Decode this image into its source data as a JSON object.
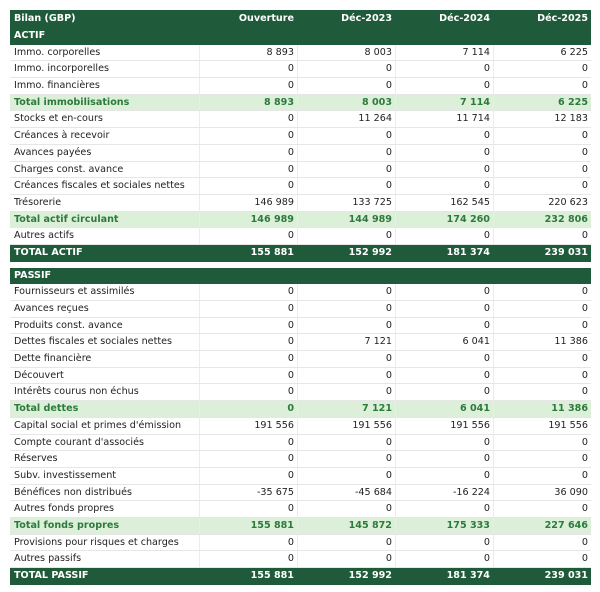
{
  "header": [
    "Bilan (GBP)",
    "Ouverture",
    "Déc-2023",
    "Déc-2024",
    "Déc-2025"
  ],
  "sections": [
    {
      "title": "ACTIF",
      "rows": [
        {
          "label": "Immo. corporelles",
          "values": [
            "8 893",
            "8 003",
            "7 114",
            "6 225"
          ]
        },
        {
          "label": "Immo. incorporelles",
          "values": [
            "0",
            "0",
            "0",
            "0"
          ]
        },
        {
          "label": "Immo. financières",
          "values": [
            "0",
            "0",
            "0",
            "0"
          ]
        },
        {
          "label": "Total immobilisations",
          "values": [
            "8 893",
            "8 003",
            "7 114",
            "6 225"
          ],
          "style": "subtotal"
        },
        {
          "label": "Stocks et en-cours",
          "values": [
            "0",
            "11 264",
            "11 714",
            "12 183"
          ]
        },
        {
          "label": "Créances à recevoir",
          "values": [
            "0",
            "0",
            "0",
            "0"
          ]
        },
        {
          "label": "Avances payées",
          "values": [
            "0",
            "0",
            "0",
            "0"
          ]
        },
        {
          "label": "Charges const. avance",
          "values": [
            "0",
            "0",
            "0",
            "0"
          ]
        },
        {
          "label": "Créances fiscales et sociales nettes",
          "values": [
            "0",
            "0",
            "0",
            "0"
          ]
        },
        {
          "label": "Trésorerie",
          "values": [
            "146 989",
            "133 725",
            "162 545",
            "220 623"
          ]
        },
        {
          "label": "Total actif circulant",
          "values": [
            "146 989",
            "144 989",
            "174 260",
            "232 806"
          ],
          "style": "subtotal"
        },
        {
          "label": "Autres actifs",
          "values": [
            "0",
            "0",
            "0",
            "0"
          ]
        },
        {
          "label": "TOTAL ACTIF",
          "values": [
            "155 881",
            "152 992",
            "181 374",
            "239 031"
          ],
          "style": "total"
        }
      ]
    },
    {
      "title": "PASSIF",
      "rows": [
        {
          "label": "Fournisseurs et assimilés",
          "values": [
            "0",
            "0",
            "0",
            "0"
          ]
        },
        {
          "label": "Avances reçues",
          "values": [
            "0",
            "0",
            "0",
            "0"
          ]
        },
        {
          "label": "Produits const. avance",
          "values": [
            "0",
            "0",
            "0",
            "0"
          ]
        },
        {
          "label": "Dettes fiscales et sociales nettes",
          "values": [
            "0",
            "7 121",
            "6 041",
            "11 386"
          ]
        },
        {
          "label": "Dette financière",
          "values": [
            "0",
            "0",
            "0",
            "0"
          ]
        },
        {
          "label": "Découvert",
          "values": [
            "0",
            "0",
            "0",
            "0"
          ]
        },
        {
          "label": "Intérêts courus non échus",
          "values": [
            "0",
            "0",
            "0",
            "0"
          ]
        },
        {
          "label": "Total dettes",
          "values": [
            "0",
            "7 121",
            "6 041",
            "11 386"
          ],
          "style": "subtotal"
        },
        {
          "label": "Capital social et primes d'émission",
          "values": [
            "191 556",
            "191 556",
            "191 556",
            "191 556"
          ]
        },
        {
          "label": "Compte courant d'associés",
          "values": [
            "0",
            "0",
            "0",
            "0"
          ]
        },
        {
          "label": "Réserves",
          "values": [
            "0",
            "0",
            "0",
            "0"
          ]
        },
        {
          "label": "Subv. investissement",
          "values": [
            "0",
            "0",
            "0",
            "0"
          ]
        },
        {
          "label": "Bénéfices non distribués",
          "values": [
            "-35 675",
            "-45 684",
            "-16 224",
            "36 090"
          ]
        },
        {
          "label": "Autres fonds propres",
          "values": [
            "0",
            "0",
            "0",
            "0"
          ]
        },
        {
          "label": "Total fonds propres",
          "values": [
            "155 881",
            "145 872",
            "175 333",
            "227 646"
          ],
          "style": "subtotal"
        },
        {
          "label": "Provisions pour risques et charges",
          "values": [
            "0",
            "0",
            "0",
            "0"
          ]
        },
        {
          "label": "Autres passifs",
          "values": [
            "0",
            "0",
            "0",
            "0"
          ]
        },
        {
          "label": "TOTAL PASSIF",
          "values": [
            "155 881",
            "152 992",
            "181 374",
            "239 031"
          ],
          "style": "total"
        }
      ]
    }
  ]
}
